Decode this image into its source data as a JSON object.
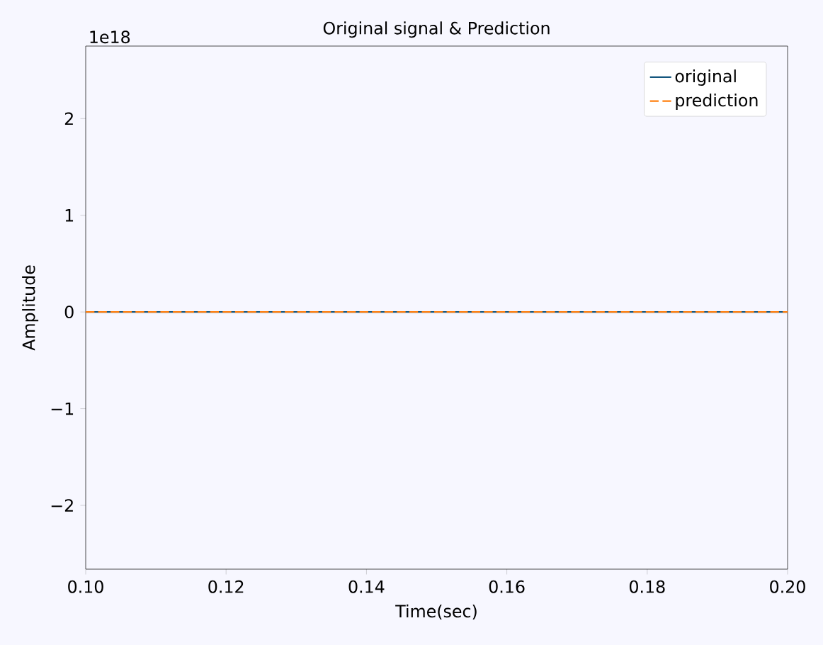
{
  "chart_data": {
    "type": "line",
    "title": "Original signal & Prediction",
    "xlabel": "Time(sec)",
    "ylabel": "Amplitude",
    "x": [
      0.1,
      0.2
    ],
    "series": [
      {
        "name": "original",
        "color": "#14567e",
        "line_style": "solid",
        "values": [
          0,
          0
        ]
      },
      {
        "name": "prediction",
        "color": "#ff7f0e",
        "line_style": "dashed",
        "values": [
          0,
          0
        ]
      }
    ],
    "xlim": [
      0.1,
      0.2
    ],
    "ylim": [
      -2.66,
      2.75
    ],
    "xticks": [
      {
        "value": 0.1,
        "label": "0.10"
      },
      {
        "value": 0.12,
        "label": "0.12"
      },
      {
        "value": 0.14,
        "label": "0.14"
      },
      {
        "value": 0.16,
        "label": "0.16"
      },
      {
        "value": 0.18,
        "label": "0.18"
      },
      {
        "value": 0.2,
        "label": "0.20"
      }
    ],
    "yticks": [
      {
        "value": -2,
        "label": "−2"
      },
      {
        "value": -1,
        "label": "−1"
      },
      {
        "value": 0,
        "label": "0"
      },
      {
        "value": 1,
        "label": "1"
      },
      {
        "value": 2,
        "label": "2"
      }
    ],
    "annotations": [
      "1e18"
    ],
    "grid": false,
    "legend": "top right"
  }
}
